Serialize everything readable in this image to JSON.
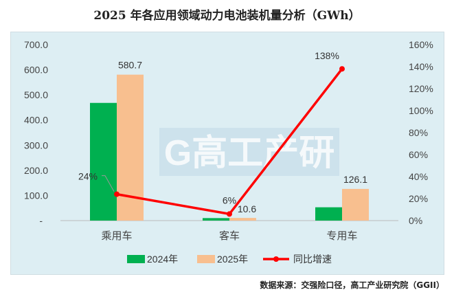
{
  "title": "2025 年各应用领域动力电池装机量分析（GWh）",
  "source": "数据来源：交强险口径，高工产业研究院（GGII）",
  "watermark": "G高工产研",
  "chart_data": {
    "type": "bar",
    "title": "2025 年各应用领域动力电池装机量分析（GWh）",
    "categories": [
      "乘用车",
      "客车",
      "专用车"
    ],
    "series": [
      {
        "name": "2024年",
        "type": "bar",
        "axis": "left",
        "color": "#00B050",
        "values": [
          468.3,
          10.0,
          53.0
        ]
      },
      {
        "name": "2025年",
        "type": "bar",
        "axis": "left",
        "color": "#F8BF8F",
        "values": [
          580.7,
          10.6,
          126.1
        ],
        "labels": [
          "580.7",
          "10.6",
          "126.1"
        ]
      },
      {
        "name": "同比增速",
        "type": "line",
        "axis": "right",
        "color": "#FF0000",
        "values": [
          24,
          6,
          138
        ],
        "labels": [
          "24%",
          "6%",
          "138%"
        ]
      }
    ],
    "y_left": {
      "range": [
        0,
        700
      ],
      "ticks": [
        "-",
        "100.0",
        "200.0",
        "300.0",
        "400.0",
        "500.0",
        "600.0",
        "700.0"
      ]
    },
    "y_right": {
      "range": [
        0,
        160
      ],
      "ticks": [
        "0%",
        "20%",
        "40%",
        "60%",
        "80%",
        "100%",
        "120%",
        "140%",
        "160%"
      ]
    },
    "legend": "bottom",
    "grid": false
  }
}
